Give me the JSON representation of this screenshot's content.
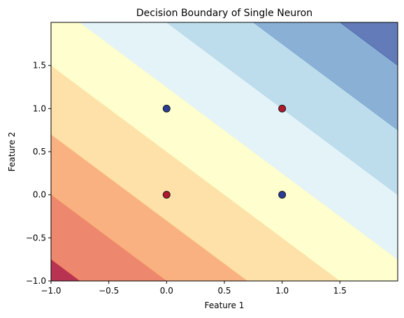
{
  "chart_data": {
    "type": "contour",
    "title": "Decision Boundary of Single Neuron",
    "xlabel": "Feature 1",
    "ylabel": "Feature 2",
    "xlim": [
      -1.0,
      2.0
    ],
    "ylim": [
      -1.0,
      2.0
    ],
    "x_ticks": [
      -1.0,
      -0.5,
      0.0,
      0.5,
      1.0,
      1.5
    ],
    "x_tick_labels": [
      "−1.0",
      "−0.5",
      "0.0",
      "0.5",
      "1.0",
      "1.5"
    ],
    "y_ticks": [
      -1.0,
      -0.5,
      0.0,
      0.5,
      1.0,
      1.5
    ],
    "y_tick_labels": [
      "−1.0",
      "−0.5",
      "0.0",
      "0.5",
      "1.0",
      "1.5"
    ],
    "grid": false,
    "legend": "none",
    "contour": {
      "level_variable": "x + y",
      "level_boundaries": [
        -1.75,
        -1.0,
        -0.3,
        0.5,
        1.25,
        2.0,
        2.75,
        3.5
      ],
      "band_colors": [
        "#a50026",
        "#e8694a",
        "#f89e62",
        "#fcd994",
        "#fefec2",
        "#ddf0f6",
        "#acd4e7",
        "#6d9ecb",
        "#3c5aa6"
      ],
      "alpha": 0.8
    },
    "points": [
      {
        "x": 0,
        "y": 0,
        "color": "#b2182b"
      },
      {
        "x": 0,
        "y": 1,
        "color": "#2b3b98"
      },
      {
        "x": 1,
        "y": 0,
        "color": "#2b3b98"
      },
      {
        "x": 1,
        "y": 1,
        "color": "#b2182b"
      }
    ]
  }
}
